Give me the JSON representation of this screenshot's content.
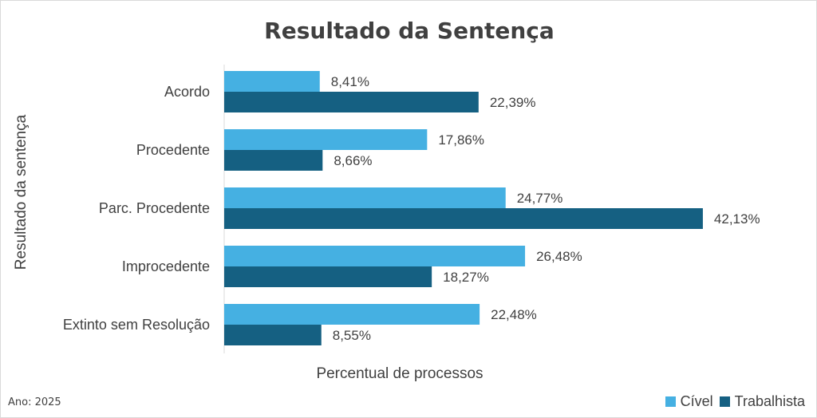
{
  "chart_data": {
    "type": "bar",
    "orientation": "horizontal",
    "title": "Resultado da Sentença",
    "xlabel": "Percentual de processos",
    "ylabel": "Resultado da sentença",
    "categories": [
      "Acordo",
      "Procedente",
      "Parc. Procedente",
      "Improcedente",
      "Extinto sem Resolução"
    ],
    "series": [
      {
        "name": "Cível",
        "color": "#45b0e2",
        "values": [
          8.41,
          17.86,
          24.77,
          26.48,
          22.48
        ],
        "labels": [
          "8,41%",
          "17,86%",
          "24,77%",
          "26,48%",
          "22,48%"
        ]
      },
      {
        "name": "Trabalhista",
        "color": "#156082",
        "values": [
          22.39,
          8.66,
          42.13,
          18.27,
          8.55
        ],
        "labels": [
          "22,39%",
          "8,66%",
          "42,13%",
          "18,27%",
          "8,55%"
        ]
      }
    ],
    "xlim": [
      0,
      45
    ],
    "grid": false,
    "legend_position": "bottom-right"
  },
  "footnote": "Ano: 2025"
}
